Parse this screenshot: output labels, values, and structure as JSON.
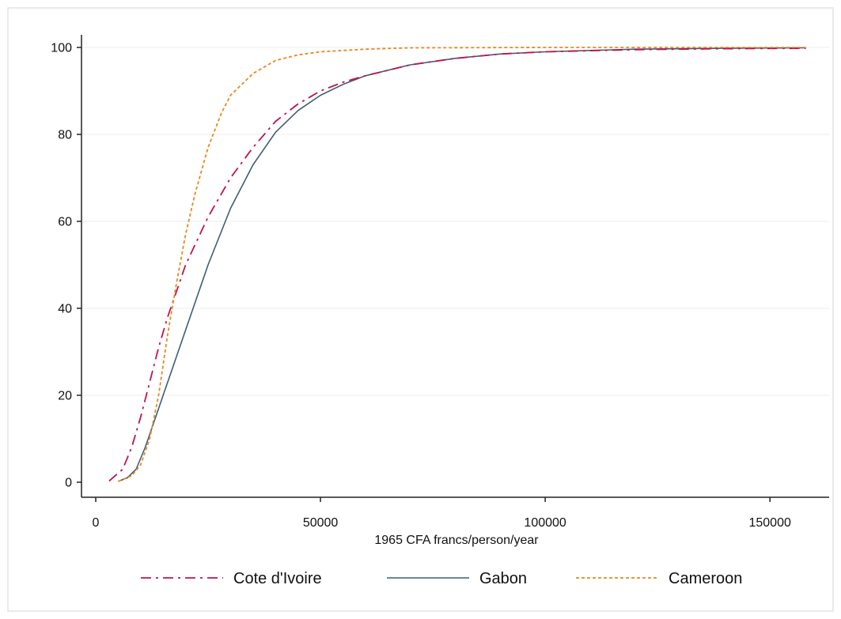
{
  "chart_data": {
    "type": "line",
    "title": "",
    "xlabel": "1965 CFA francs/person/year",
    "ylabel": "",
    "xlim": [
      0,
      160000
    ],
    "ylim": [
      0,
      100
    ],
    "xticks": [
      0,
      50000,
      100000,
      150000
    ],
    "yticks": [
      0,
      20,
      40,
      60,
      80,
      100
    ],
    "grid": "horizontal",
    "legend_position": "bottom",
    "series": [
      {
        "name": "Cote d'Ivoire",
        "color": "#c0134e",
        "style": "dash-dot",
        "points": [
          [
            3000,
            0.3
          ],
          [
            6000,
            3
          ],
          [
            8000,
            8
          ],
          [
            10000,
            15
          ],
          [
            12000,
            23
          ],
          [
            14000,
            31
          ],
          [
            16000,
            38
          ],
          [
            18000,
            44
          ],
          [
            20000,
            50
          ],
          [
            25000,
            61
          ],
          [
            30000,
            70
          ],
          [
            35000,
            77
          ],
          [
            40000,
            83
          ],
          [
            45000,
            87
          ],
          [
            50000,
            90
          ],
          [
            55000,
            92
          ],
          [
            60000,
            93.5
          ],
          [
            70000,
            96
          ],
          [
            80000,
            97.5
          ],
          [
            90000,
            98.5
          ],
          [
            100000,
            99
          ],
          [
            120000,
            99.5
          ],
          [
            140000,
            99.7
          ],
          [
            158000,
            99.8
          ]
        ]
      },
      {
        "name": "Gabon",
        "color": "#3f5d78",
        "style": "solid",
        "points": [
          [
            5000,
            0.2
          ],
          [
            7000,
            1
          ],
          [
            9000,
            3
          ],
          [
            11000,
            8
          ],
          [
            13000,
            14
          ],
          [
            15000,
            20
          ],
          [
            17000,
            26
          ],
          [
            20000,
            35
          ],
          [
            25000,
            50
          ],
          [
            30000,
            63
          ],
          [
            35000,
            73
          ],
          [
            40000,
            80.5
          ],
          [
            45000,
            85.5
          ],
          [
            50000,
            89
          ],
          [
            55000,
            91.5
          ],
          [
            60000,
            93.5
          ],
          [
            70000,
            96
          ],
          [
            80000,
            97.5
          ],
          [
            90000,
            98.5
          ],
          [
            100000,
            99
          ],
          [
            120000,
            99.6
          ],
          [
            140000,
            99.8
          ],
          [
            158000,
            99.9
          ]
        ]
      },
      {
        "name": "Cameroon",
        "color": "#e8891e",
        "style": "dotted",
        "points": [
          [
            5000,
            0.2
          ],
          [
            8000,
            1.5
          ],
          [
            10000,
            4
          ],
          [
            12000,
            10
          ],
          [
            14000,
            20
          ],
          [
            16000,
            34
          ],
          [
            18000,
            46
          ],
          [
            20000,
            57
          ],
          [
            22000,
            66
          ],
          [
            25000,
            77
          ],
          [
            28000,
            85
          ],
          [
            30000,
            89
          ],
          [
            35000,
            94
          ],
          [
            40000,
            97
          ],
          [
            45000,
            98.3
          ],
          [
            50000,
            99
          ],
          [
            60000,
            99.6
          ],
          [
            70000,
            99.9
          ],
          [
            100000,
            100
          ],
          [
            130000,
            100
          ],
          [
            158000,
            100
          ]
        ]
      }
    ]
  }
}
